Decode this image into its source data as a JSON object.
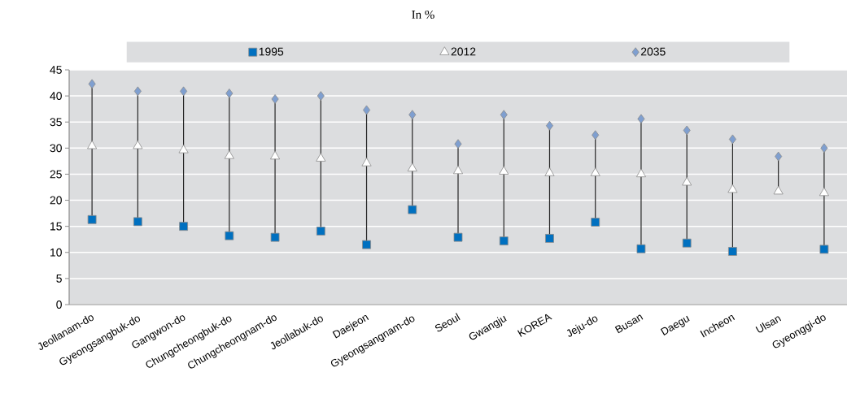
{
  "chart_data": {
    "type": "scatter",
    "title": "In %",
    "categories": [
      "Jeollanam-do",
      "Gyeongsangbuk-do",
      "Gangwon-do",
      "Chungcheongbuk-do",
      "Chungcheongnam-do",
      "Jeollabuk-do",
      "Daejeon",
      "Gyeongsangnam-do",
      "Seoul",
      "Gwangju",
      "KOREA",
      "Jeju-do",
      "Busan",
      "Daegu",
      "Incheon",
      "Ulsan",
      "Gyeonggi-do"
    ],
    "series": [
      {
        "name": "1995",
        "color": "#0070c0",
        "marker": "square",
        "values": [
          16.3,
          15.9,
          15.0,
          13.2,
          12.9,
          14.1,
          11.5,
          18.2,
          12.9,
          12.2,
          12.7,
          15.8,
          10.7,
          11.8,
          10.2,
          null,
          10.6
        ]
      },
      {
        "name": "2012",
        "color": "#ffffff",
        "marker": "triangle",
        "values": [
          30.4,
          30.4,
          29.6,
          28.5,
          28.4,
          28.0,
          27.1,
          26.1,
          25.6,
          25.5,
          25.2,
          25.2,
          25.0,
          23.4,
          22.0,
          21.7,
          21.4
        ]
      },
      {
        "name": "2035",
        "color": "#7f9fd0",
        "marker": "diamond",
        "values": [
          42.3,
          40.9,
          40.9,
          40.5,
          39.4,
          40.0,
          37.3,
          36.4,
          30.8,
          36.4,
          34.3,
          32.5,
          35.6,
          33.4,
          31.7,
          28.4,
          30.0
        ]
      }
    ],
    "ylim": [
      0,
      45
    ],
    "yticks": [
      0,
      5,
      10,
      15,
      20,
      25,
      30,
      35,
      40,
      45
    ],
    "grid": "y",
    "legend": "top"
  }
}
